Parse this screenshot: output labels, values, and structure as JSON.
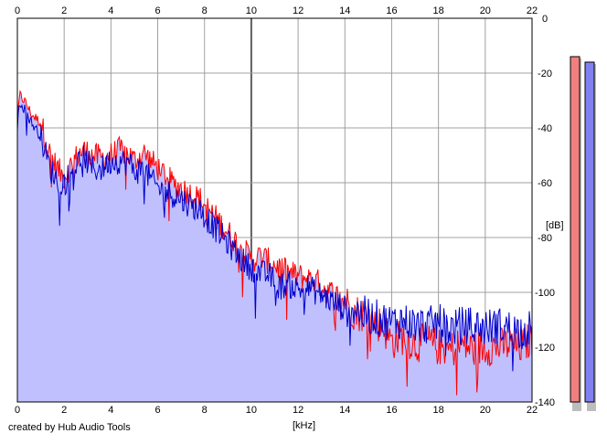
{
  "credit": "created by Hub Audio Tools",
  "chart_data": {
    "type": "line",
    "xlabel": "[kHz]",
    "ylabel": "[dB]",
    "xlim": [
      0,
      22
    ],
    "ylim": [
      -140,
      0
    ],
    "x_ticks": [
      "0",
      "2",
      "4",
      "6",
      "8",
      "10",
      "12",
      "14",
      "16",
      "18",
      "20",
      "22"
    ],
    "y_ticks": [
      "0",
      "-20",
      "-40",
      "-60",
      "-80",
      "-100",
      "-120",
      "-140"
    ],
    "grid": true,
    "fill_color": "#c0c0ff",
    "series": [
      {
        "color": "#ff0000",
        "x": [
          0,
          0.1,
          0.3,
          0.6,
          1.0,
          1.4,
          1.8,
          2.0,
          2.4,
          2.8,
          3.2,
          3.6,
          4.0,
          4.4,
          4.8,
          5.0,
          5.4,
          5.8,
          6.2,
          6.6,
          7.0,
          7.4,
          7.8,
          8.2,
          8.6,
          9.0,
          9.4,
          9.8,
          10.0,
          10.4,
          10.8,
          11.2,
          11.6,
          12.0,
          12.4,
          12.8,
          13.2,
          13.6,
          14.0,
          14.4,
          14.8,
          15.2,
          15.6,
          16.0,
          16.5,
          17.0,
          17.5,
          18.0,
          18.5,
          19.0,
          19.5,
          20.0,
          20.5,
          21.0,
          21.5,
          22.0
        ],
        "y": [
          -38,
          -28,
          -30,
          -35,
          -38,
          -50,
          -56,
          -58,
          -52,
          -48,
          -50,
          -51,
          -50,
          -48,
          -50,
          -52,
          -49,
          -53,
          -56,
          -60,
          -62,
          -64,
          -66,
          -70,
          -74,
          -78,
          -82,
          -86,
          -88,
          -87,
          -89,
          -91,
          -93,
          -94,
          -95,
          -96,
          -99,
          -101,
          -103,
          -107,
          -108,
          -110,
          -112,
          -118,
          -116,
          -119,
          -118,
          -120,
          -121,
          -119,
          -121,
          -120,
          -120,
          -119,
          -120,
          -117
        ]
      },
      {
        "color": "#0000cc",
        "x": [
          0,
          0.1,
          0.3,
          0.6,
          1.0,
          1.4,
          1.8,
          2.0,
          2.4,
          2.8,
          3.2,
          3.6,
          4.0,
          4.4,
          4.8,
          5.0,
          5.4,
          5.8,
          6.2,
          6.6,
          7.0,
          7.4,
          7.8,
          8.2,
          8.6,
          9.0,
          9.4,
          9.8,
          10.0,
          10.4,
          10.8,
          11.2,
          11.6,
          12.0,
          12.4,
          12.8,
          13.2,
          13.6,
          14.0,
          14.4,
          14.8,
          15.2,
          15.6,
          16.0,
          16.5,
          17.0,
          17.5,
          18.0,
          18.5,
          19.0,
          19.5,
          20.0,
          20.5,
          21.0,
          21.5,
          22.0
        ],
        "y": [
          -40,
          -30,
          -33,
          -38,
          -43,
          -55,
          -60,
          -60,
          -55,
          -50,
          -55,
          -55,
          -52,
          -52,
          -53,
          -56,
          -55,
          -60,
          -63,
          -64,
          -66,
          -68,
          -70,
          -74,
          -78,
          -82,
          -86,
          -90,
          -91,
          -93,
          -94,
          -98,
          -97,
          -99,
          -98,
          -100,
          -102,
          -104,
          -106,
          -106,
          -108,
          -109,
          -110,
          -111,
          -110,
          -112,
          -112,
          -111,
          -113,
          -112,
          -112,
          -113,
          -112,
          -113,
          -114,
          -113
        ]
      }
    ],
    "level_meters": [
      {
        "color": "#f08080",
        "value_db": -14
      },
      {
        "color": "#8080f0",
        "value_db": -16
      }
    ]
  }
}
